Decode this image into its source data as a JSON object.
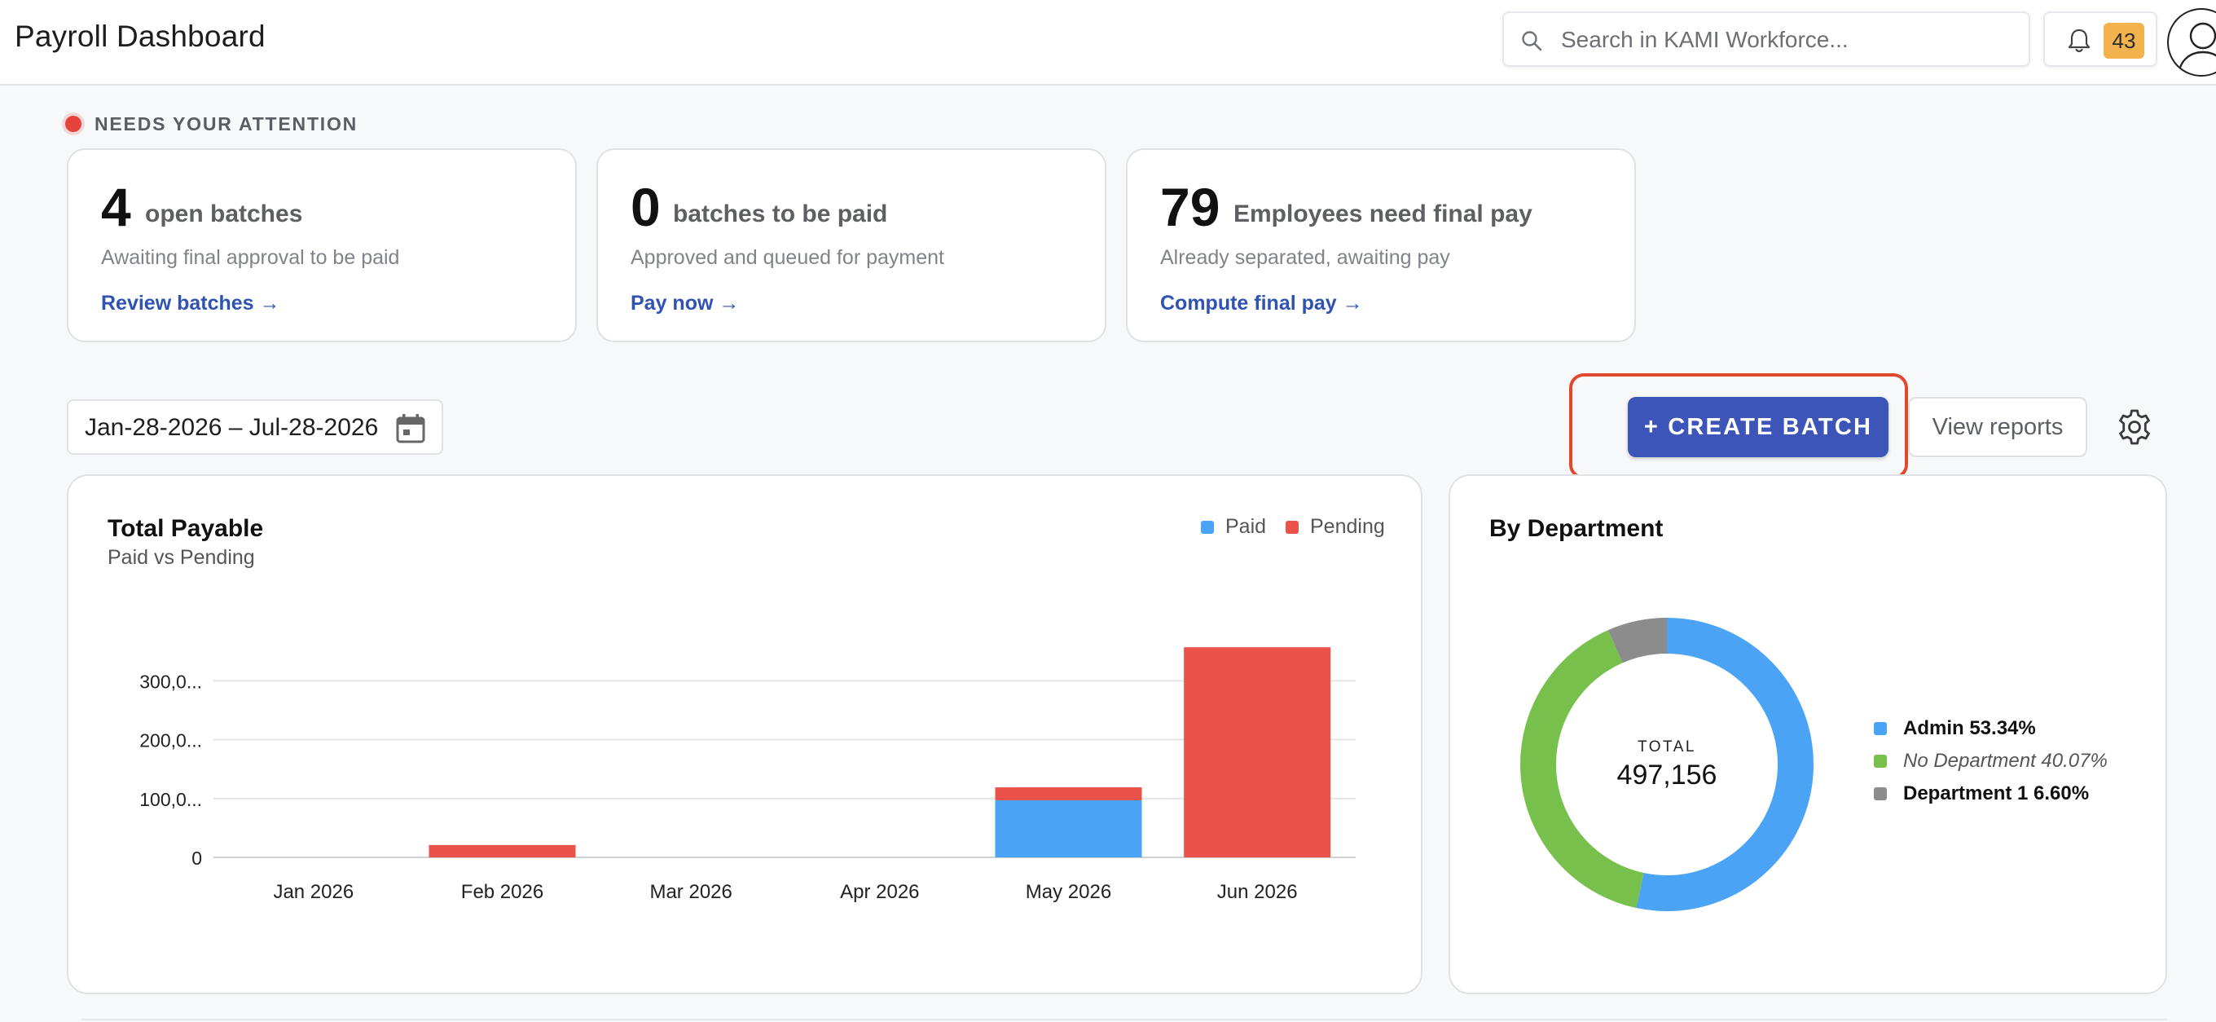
{
  "header": {
    "title": "Payroll Dashboard",
    "search_placeholder": "Search in KAMI Workforce...",
    "notification_count": "43",
    "icons": [
      "search-icon",
      "bell-icon",
      "avatar-icon"
    ]
  },
  "attention": {
    "label": "NEEDS YOUR ATTENTION",
    "cards": [
      {
        "number": "4",
        "title": "open batches",
        "subtitle": "Awaiting final approval to be paid",
        "link": "Review batches →"
      },
      {
        "number": "0",
        "title": "batches to be paid",
        "subtitle": "Approved and queued for payment",
        "link": "Pay now →"
      },
      {
        "number": "79",
        "title": "Employees need final pay",
        "subtitle": "Already separated, awaiting pay",
        "link": "Compute final pay →"
      }
    ]
  },
  "toolbar": {
    "date_range": "Jan-28-2026 – Jul-28-2026",
    "create_label": "+ CREATE BATCH",
    "reports_label": "View reports",
    "icons": [
      "calendar-icon",
      "gear-icon"
    ]
  },
  "colors": {
    "paid": "#4aa3f5",
    "pending": "#ea524a",
    "admin": "#4aa3f5",
    "no_department": "#78c04c",
    "department_1": "#8c8c8c",
    "primary": "#3d55b8",
    "highlight": "#e0492f"
  },
  "payable_panel": {
    "title": "Total Payable",
    "subtitle": "Paid vs Pending"
  },
  "department_panel": {
    "title": "By Department",
    "total_label": "TOTAL",
    "total_value": "497,156"
  },
  "chart_data": [
    {
      "type": "bar",
      "stacked": true,
      "title": "Total Payable",
      "subtitle": "Paid vs Pending",
      "categories": [
        "Jan 2026",
        "Feb 2026",
        "Mar 2026",
        "Apr 2026",
        "May 2026",
        "Jun 2026"
      ],
      "series": [
        {
          "name": "Paid",
          "values": [
            0,
            0,
            0,
            0,
            97000,
            0
          ]
        },
        {
          "name": "Pending",
          "values": [
            0,
            21000,
            0,
            0,
            22000,
            357000
          ]
        }
      ],
      "y_ticks": [
        "0",
        "100,0...",
        "200,0...",
        "300,0..."
      ],
      "y_tick_values": [
        0,
        100000,
        200000,
        300000
      ],
      "ylim": [
        0,
        360000
      ],
      "legend": "top-right",
      "grid": true
    },
    {
      "type": "pie",
      "title": "By Department",
      "labels": [
        "Admin",
        "No Department",
        "Department 1"
      ],
      "label_texts": [
        "Admin 53.34%",
        "No Department 40.07%",
        "Department 1 6.60%"
      ],
      "values": [
        53.34,
        40.07,
        6.6
      ],
      "center_label": "TOTAL",
      "center_value": "497,156",
      "legend": "right"
    }
  ]
}
